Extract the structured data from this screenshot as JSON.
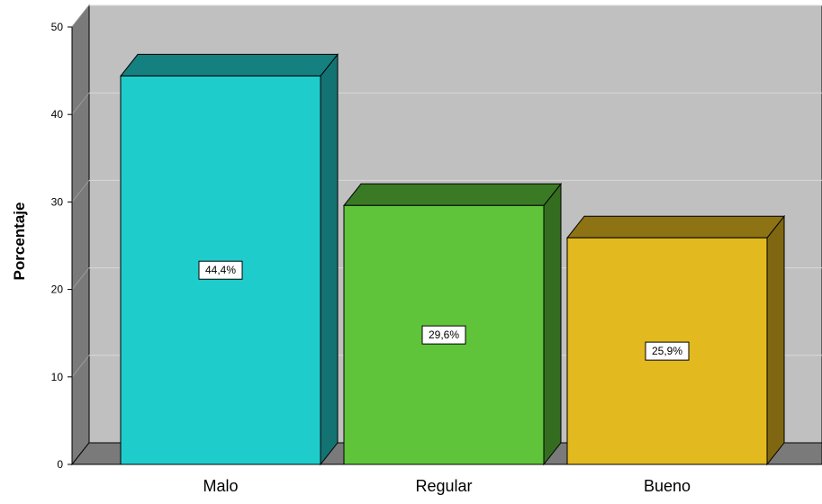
{
  "chart_data": {
    "type": "bar",
    "style": "3d",
    "categories": [
      "Malo",
      "Regular",
      "Bueno"
    ],
    "values": [
      44.4,
      29.6,
      25.9
    ],
    "data_labels": [
      "44,4%",
      "29,6%",
      "25,9%"
    ],
    "title": "",
    "xlabel": "",
    "ylabel": "Porcentaje",
    "ylim": [
      0,
      50
    ],
    "yticks": [
      0,
      10,
      20,
      30,
      40,
      50
    ],
    "grid": true,
    "legend": "none",
    "colors": {
      "bars": [
        "#1fcccc",
        "#5fc43a",
        "#e2b91f"
      ],
      "bars_top": [
        "#158080",
        "#3b7a24",
        "#8d7313"
      ],
      "bars_side": [
        "#137373",
        "#356d20",
        "#7f6711"
      ],
      "plot_back": "#c0c0c0",
      "wall": "#7a7a7a",
      "gridline": "#d8d8d8"
    }
  }
}
